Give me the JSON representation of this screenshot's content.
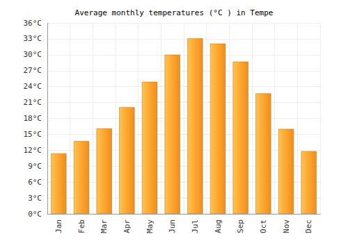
{
  "chart_data": {
    "type": "bar",
    "title": "Average monthly temperatures (°C ) in Tempe",
    "categories": [
      "Jan",
      "Feb",
      "Mar",
      "Apr",
      "May",
      "Jun",
      "Jul",
      "Aug",
      "Sep",
      "Oct",
      "Nov",
      "Dec"
    ],
    "values": [
      11.4,
      13.7,
      16.1,
      20.1,
      24.9,
      30.0,
      33.1,
      32.1,
      28.7,
      22.7,
      16.0,
      11.8
    ],
    "color": "#fba631",
    "ylim": [
      0,
      36
    ],
    "yticks": [
      {
        "value": 0,
        "label": "0°C"
      },
      {
        "value": 3,
        "label": "3°C"
      },
      {
        "value": 6,
        "label": "6°C"
      },
      {
        "value": 9,
        "label": "9°C"
      },
      {
        "value": 12,
        "label": "12°C"
      },
      {
        "value": 15,
        "label": "15°C"
      },
      {
        "value": 18,
        "label": "18°C"
      },
      {
        "value": 21,
        "label": "21°C"
      },
      {
        "value": 24,
        "label": "24°C"
      },
      {
        "value": 27,
        "label": "27°C"
      },
      {
        "value": 30,
        "label": "30°C"
      },
      {
        "value": 33,
        "label": "33°C"
      },
      {
        "value": 36,
        "label": "36°C"
      }
    ],
    "grid": true
  }
}
